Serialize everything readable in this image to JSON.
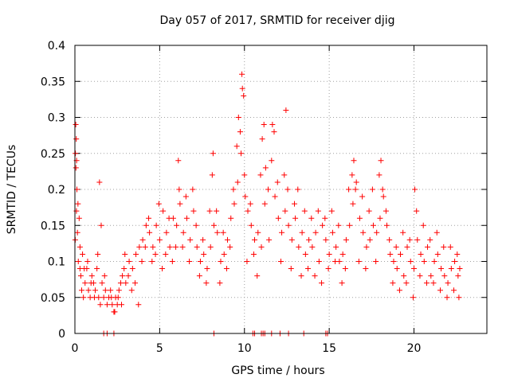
{
  "chart_data": {
    "type": "scatter",
    "title": "Day 057 of 2017, SRMTID for receiver djig",
    "xlabel": "GPS time / hours",
    "ylabel": "SRMTID / TECUs",
    "xlim": [
      0,
      24.3
    ],
    "ylim": [
      0,
      0.4
    ],
    "x_ticks": [
      0,
      5,
      10,
      15,
      20
    ],
    "x_tick_labels": [
      "0",
      "5",
      "10",
      "15",
      "20"
    ],
    "y_ticks": [
      0,
      0.05,
      0.1,
      0.15,
      0.2,
      0.25,
      0.3,
      0.35,
      0.4
    ],
    "y_tick_labels": [
      "0",
      "0.05",
      "0.1",
      "0.15",
      "0.2",
      "0.25",
      "0.3",
      "0.35",
      "0.4"
    ],
    "grid": true,
    "marker": "+",
    "marker_color": "#ff0000",
    "series": [
      {
        "name": "SRMTID",
        "points": [
          [
            0.02,
            0.13
          ],
          [
            0.05,
            0.29
          ],
          [
            0.08,
            0.27
          ],
          [
            0.1,
            0.24
          ],
          [
            0.12,
            0.2
          ],
          [
            0.15,
            0.14
          ],
          [
            0.18,
            0.18
          ],
          [
            0.2,
            0.1
          ],
          [
            0.25,
            0.16
          ],
          [
            0.3,
            0.12
          ],
          [
            0.35,
            0.08
          ],
          [
            0.4,
            0.06
          ],
          [
            0.5,
            0.05
          ],
          [
            0.6,
            0.07
          ],
          [
            0.7,
            0.09
          ],
          [
            0.8,
            0.06
          ],
          [
            0.9,
            0.05
          ],
          [
            1.0,
            0.08
          ],
          [
            1.1,
            0.07
          ],
          [
            1.2,
            0.06
          ],
          [
            1.3,
            0.09
          ],
          [
            1.4,
            0.05
          ],
          [
            1.5,
            0.04
          ],
          [
            1.6,
            0.07
          ],
          [
            1.7,
            0.05
          ],
          [
            1.8,
            0.06
          ],
          [
            1.9,
            0.04
          ],
          [
            2.0,
            0.05
          ],
          [
            2.1,
            0.06
          ],
          [
            2.2,
            0.04
          ],
          [
            2.3,
            0.03
          ],
          [
            2.4,
            0.05
          ],
          [
            2.5,
            0.04
          ],
          [
            2.6,
            0.06
          ],
          [
            2.7,
            0.07
          ],
          [
            2.8,
            0.08
          ],
          [
            2.9,
            0.09
          ],
          [
            3.0,
            0.07
          ],
          [
            3.2,
            0.1
          ],
          [
            3.4,
            0.09
          ],
          [
            3.6,
            0.11
          ],
          [
            3.8,
            0.12
          ],
          [
            4.0,
            0.13
          ],
          [
            4.2,
            0.15
          ],
          [
            4.4,
            0.14
          ],
          [
            4.6,
            0.12
          ],
          [
            4.8,
            0.15
          ],
          [
            5.0,
            0.13
          ],
          [
            5.2,
            0.17
          ],
          [
            5.4,
            0.14
          ],
          [
            5.6,
            0.12
          ],
          [
            5.8,
            0.16
          ],
          [
            6.0,
            0.15
          ],
          [
            6.2,
            0.18
          ],
          [
            6.4,
            0.14
          ],
          [
            6.6,
            0.16
          ],
          [
            6.8,
            0.13
          ],
          [
            7.0,
            0.17
          ],
          [
            7.2,
            0.12
          ],
          [
            7.4,
            0.1
          ],
          [
            7.6,
            0.11
          ],
          [
            7.8,
            0.09
          ],
          [
            8.0,
            0.12
          ],
          [
            8.2,
            0.15
          ],
          [
            8.4,
            0.14
          ],
          [
            8.6,
            0.1
          ],
          [
            8.8,
            0.11
          ],
          [
            9.0,
            0.13
          ],
          [
            9.2,
            0.16
          ],
          [
            9.4,
            0.18
          ],
          [
            9.6,
            0.21
          ],
          [
            9.8,
            0.25
          ],
          [
            10.0,
            0.22
          ],
          [
            10.2,
            0.17
          ],
          [
            10.4,
            0.15
          ],
          [
            10.6,
            0.13
          ],
          [
            10.8,
            0.14
          ],
          [
            11.0,
            0.12
          ],
          [
            11.2,
            0.18
          ],
          [
            11.4,
            0.2
          ],
          [
            11.6,
            0.24
          ],
          [
            11.8,
            0.19
          ],
          [
            12.0,
            0.16
          ],
          [
            12.2,
            0.14
          ],
          [
            12.4,
            0.17
          ],
          [
            12.6,
            0.15
          ],
          [
            12.8,
            0.13
          ],
          [
            13.0,
            0.16
          ],
          [
            13.2,
            0.12
          ],
          [
            13.4,
            0.14
          ],
          [
            13.6,
            0.11
          ],
          [
            13.8,
            0.13
          ],
          [
            14.0,
            0.12
          ],
          [
            14.2,
            0.14
          ],
          [
            14.4,
            0.1
          ],
          [
            14.6,
            0.15
          ],
          [
            14.8,
            0.13
          ],
          [
            15.0,
            0.11
          ],
          [
            15.2,
            0.14
          ],
          [
            15.4,
            0.12
          ],
          [
            15.6,
            0.1
          ],
          [
            15.8,
            0.11
          ],
          [
            16.0,
            0.13
          ],
          [
            16.2,
            0.15
          ],
          [
            16.4,
            0.18
          ],
          [
            16.6,
            0.21
          ],
          [
            16.8,
            0.16
          ],
          [
            17.0,
            0.14
          ],
          [
            17.2,
            0.12
          ],
          [
            17.4,
            0.13
          ],
          [
            17.6,
            0.15
          ],
          [
            17.8,
            0.14
          ],
          [
            18.0,
            0.16
          ],
          [
            18.2,
            0.19
          ],
          [
            18.4,
            0.15
          ],
          [
            18.6,
            0.11
          ],
          [
            18.8,
            0.1
          ],
          [
            19.0,
            0.09
          ],
          [
            19.2,
            0.11
          ],
          [
            19.4,
            0.08
          ],
          [
            19.6,
            0.12
          ],
          [
            19.8,
            0.1
          ],
          [
            20.0,
            0.09
          ],
          [
            20.2,
            0.13
          ],
          [
            20.4,
            0.11
          ],
          [
            20.6,
            0.1
          ],
          [
            20.8,
            0.12
          ],
          [
            21.0,
            0.08
          ],
          [
            21.2,
            0.1
          ],
          [
            21.4,
            0.11
          ],
          [
            21.6,
            0.09
          ],
          [
            21.8,
            0.08
          ],
          [
            22.0,
            0.07
          ],
          [
            22.2,
            0.09
          ],
          [
            22.4,
            0.1
          ],
          [
            22.6,
            0.08
          ],
          [
            22.7,
            0.09
          ],
          [
            0.03,
            0.25
          ],
          [
            0.06,
            0.23
          ],
          [
            0.09,
            0.17
          ],
          [
            0.3,
            0.09
          ],
          [
            0.45,
            0.11
          ],
          [
            0.55,
            0.09
          ],
          [
            0.75,
            0.1
          ],
          [
            0.95,
            0.07
          ],
          [
            1.15,
            0.05
          ],
          [
            1.35,
            0.11
          ],
          [
            1.45,
            0.21
          ],
          [
            1.55,
            0.15
          ],
          [
            1.75,
            0.08
          ],
          [
            2.15,
            0.05
          ],
          [
            2.35,
            0.03
          ],
          [
            2.55,
            0.05
          ],
          [
            2.75,
            0.04
          ],
          [
            2.95,
            0.11
          ],
          [
            3.15,
            0.08
          ],
          [
            3.35,
            0.06
          ],
          [
            3.55,
            0.07
          ],
          [
            3.75,
            0.04
          ],
          [
            3.95,
            0.1
          ],
          [
            4.15,
            0.12
          ],
          [
            4.35,
            0.16
          ],
          [
            4.55,
            0.1
          ],
          [
            4.75,
            0.11
          ],
          [
            4.95,
            0.18
          ],
          [
            5.15,
            0.09
          ],
          [
            5.35,
            0.11
          ],
          [
            5.55,
            0.16
          ],
          [
            5.75,
            0.1
          ],
          [
            5.95,
            0.12
          ],
          [
            6.1,
            0.24
          ],
          [
            6.15,
            0.2
          ],
          [
            6.35,
            0.12
          ],
          [
            6.55,
            0.19
          ],
          [
            6.75,
            0.1
          ],
          [
            6.95,
            0.2
          ],
          [
            7.15,
            0.15
          ],
          [
            7.35,
            0.08
          ],
          [
            7.55,
            0.13
          ],
          [
            7.75,
            0.07
          ],
          [
            7.95,
            0.17
          ],
          [
            8.1,
            0.22
          ],
          [
            8.15,
            0.25
          ],
          [
            8.35,
            0.17
          ],
          [
            8.55,
            0.07
          ],
          [
            8.75,
            0.14
          ],
          [
            8.95,
            0.09
          ],
          [
            9.15,
            0.12
          ],
          [
            9.35,
            0.2
          ],
          [
            9.55,
            0.26
          ],
          [
            9.65,
            0.3
          ],
          [
            9.75,
            0.28
          ],
          [
            9.85,
            0.36
          ],
          [
            9.88,
            0.34
          ],
          [
            9.95,
            0.33
          ],
          [
            10.05,
            0.19
          ],
          [
            10.15,
            0.1
          ],
          [
            10.35,
            0.18
          ],
          [
            10.55,
            0.11
          ],
          [
            10.75,
            0.08
          ],
          [
            10.95,
            0.22
          ],
          [
            11.05,
            0.27
          ],
          [
            11.15,
            0.29
          ],
          [
            11.25,
            0.23
          ],
          [
            11.45,
            0.13
          ],
          [
            11.65,
            0.29
          ],
          [
            11.75,
            0.28
          ],
          [
            11.95,
            0.21
          ],
          [
            12.15,
            0.1
          ],
          [
            12.35,
            0.22
          ],
          [
            12.45,
            0.31
          ],
          [
            12.55,
            0.2
          ],
          [
            12.75,
            0.09
          ],
          [
            12.95,
            0.18
          ],
          [
            13.15,
            0.2
          ],
          [
            13.35,
            0.08
          ],
          [
            13.55,
            0.17
          ],
          [
            13.75,
            0.09
          ],
          [
            13.95,
            0.16
          ],
          [
            14.15,
            0.08
          ],
          [
            14.35,
            0.17
          ],
          [
            14.55,
            0.07
          ],
          [
            14.75,
            0.16
          ],
          [
            14.95,
            0.09
          ],
          [
            15.15,
            0.17
          ],
          [
            15.35,
            0.1
          ],
          [
            15.55,
            0.15
          ],
          [
            15.75,
            0.07
          ],
          [
            15.95,
            0.09
          ],
          [
            16.15,
            0.2
          ],
          [
            16.35,
            0.22
          ],
          [
            16.45,
            0.24
          ],
          [
            16.55,
            0.2
          ],
          [
            16.75,
            0.1
          ],
          [
            16.95,
            0.19
          ],
          [
            17.15,
            0.09
          ],
          [
            17.35,
            0.17
          ],
          [
            17.55,
            0.2
          ],
          [
            17.75,
            0.1
          ],
          [
            17.95,
            0.22
          ],
          [
            18.05,
            0.24
          ],
          [
            18.15,
            0.2
          ],
          [
            18.35,
            0.17
          ],
          [
            18.55,
            0.13
          ],
          [
            18.75,
            0.07
          ],
          [
            18.95,
            0.12
          ],
          [
            19.15,
            0.06
          ],
          [
            19.35,
            0.14
          ],
          [
            19.55,
            0.07
          ],
          [
            19.75,
            0.13
          ],
          [
            19.95,
            0.05
          ],
          [
            20.05,
            0.2
          ],
          [
            20.15,
            0.17
          ],
          [
            20.35,
            0.08
          ],
          [
            20.55,
            0.15
          ],
          [
            20.75,
            0.07
          ],
          [
            20.95,
            0.13
          ],
          [
            21.15,
            0.07
          ],
          [
            21.35,
            0.14
          ],
          [
            21.55,
            0.06
          ],
          [
            21.75,
            0.12
          ],
          [
            21.95,
            0.05
          ],
          [
            22.15,
            0.12
          ],
          [
            22.35,
            0.06
          ],
          [
            22.55,
            0.11
          ],
          [
            22.65,
            0.05
          ],
          [
            1.7,
            0.0
          ],
          [
            1.9,
            0.0
          ],
          [
            2.3,
            0.0
          ],
          [
            8.2,
            0.0
          ],
          [
            10.5,
            0.0
          ],
          [
            10.6,
            0.0
          ],
          [
            11.0,
            0.0
          ],
          [
            11.1,
            0.0
          ],
          [
            11.2,
            0.0
          ],
          [
            11.6,
            0.0
          ],
          [
            12.1,
            0.0
          ],
          [
            12.6,
            0.0
          ],
          [
            13.5,
            0.0
          ],
          [
            14.8,
            0.0
          ],
          [
            14.9,
            0.0
          ]
        ]
      }
    ]
  }
}
